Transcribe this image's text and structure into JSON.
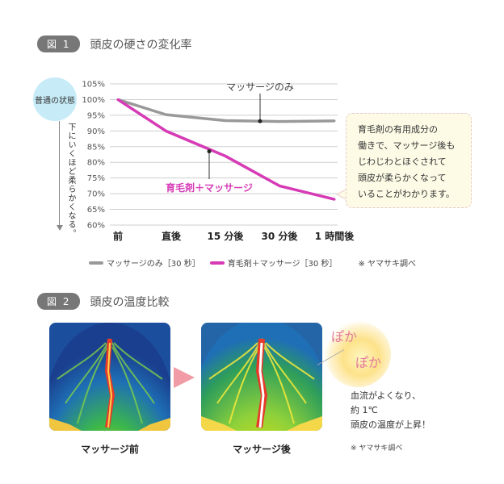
{
  "figure1": {
    "badge": "図 1",
    "title": "頭皮の硬さの変化率",
    "normal_label": "普通の状態",
    "vertical_label": "下にいくほど柔らかくなる。",
    "callout_lines": [
      "育毛剤の有用成分の",
      "働きで、マッサージ後も",
      "じわじわとほぐされて",
      "頭皮が柔らかくなって",
      "いることがわかります。"
    ],
    "annotation_gray": "マッサージのみ",
    "annotation_pink": "育毛剤＋マッサージ",
    "legend_note": "※ ヤマサキ調べ"
  },
  "chart_data": {
    "type": "line",
    "categories": [
      "前",
      "直後",
      "15 分後",
      "30 分後",
      "1 時間後"
    ],
    "x_positions": [
      0,
      1,
      2,
      3,
      4
    ],
    "ylim": [
      60,
      105
    ],
    "yticks": [
      "60%",
      "65%",
      "70%",
      "75%",
      "80%",
      "85%",
      "90%",
      "95%",
      "100%",
      "105%"
    ],
    "grid": true,
    "series": [
      {
        "name": "マッサージのみ［30 秒］",
        "color": "#999999",
        "x": [
          0,
          0.9,
          2.0,
          3.0,
          4.0
        ],
        "y": [
          100,
          95.2,
          93.3,
          93.0,
          93.2
        ]
      },
      {
        "name": "育毛剤＋マッサージ［30 秒］",
        "color": "#d63ab5",
        "x": [
          0,
          0.9,
          2.0,
          3.0,
          4.0
        ],
        "y": [
          100,
          90,
          82,
          72.5,
          68.2
        ]
      }
    ]
  },
  "figure2": {
    "badge": "図 2",
    "title": "頭皮の温度比較",
    "before_label": "マッサージ前",
    "after_label": "マッサージ後",
    "poka1": "ぽか",
    "poka2": "ぽか",
    "temp_lines": [
      "血流がよくなり、",
      "約 1℃",
      "頭皮の温度が上昇！"
    ],
    "note": "※ ヤマサキ調べ"
  }
}
